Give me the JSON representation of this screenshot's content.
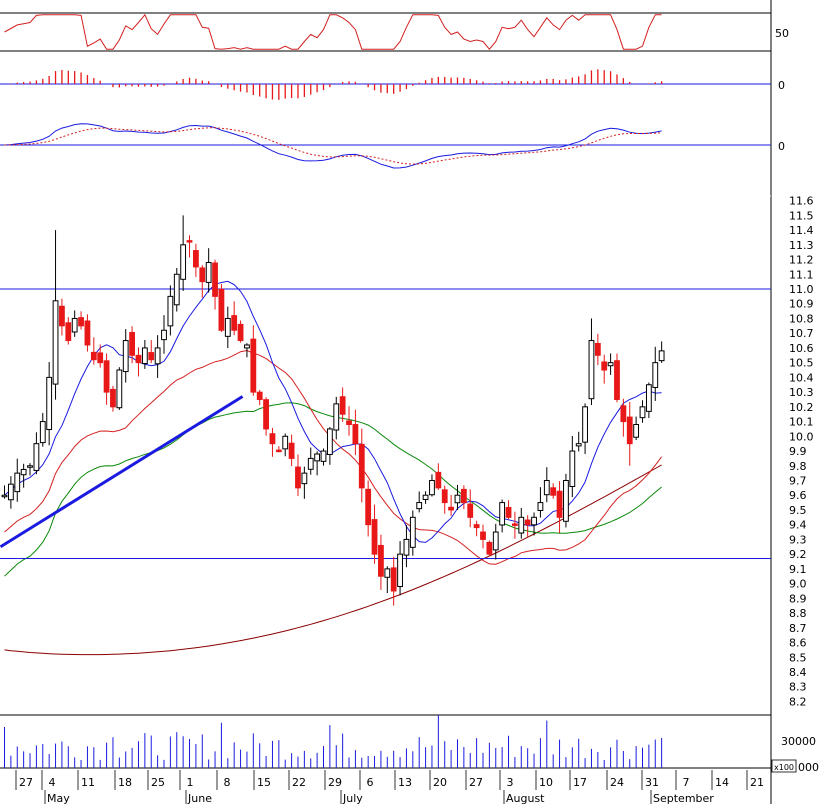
{
  "chart_data": {
    "type": "candlestick",
    "axis": {
      "rsi_ticks": [
        "50"
      ],
      "macd_hist_ticks": [
        "0"
      ],
      "macd_ticks": [
        "0"
      ],
      "price_ticks": [
        "11.6",
        "11.5",
        "11.4",
        "11.3",
        "11.2",
        "11.1",
        "11.0",
        "10.9",
        "10.8",
        "10.7",
        "10.6",
        "10.5",
        "10.4",
        "10.3",
        "10.2",
        "10.1",
        "10.0",
        "9.9",
        "9.8",
        "9.7",
        "9.6",
        "9.5",
        "9.4",
        "9.3",
        "9.2",
        "9.1",
        "9.0",
        "8.9",
        "8.8",
        "8.7",
        "8.6",
        "8.5",
        "8.4",
        "8.3",
        "8.2"
      ],
      "volume_ticks": [
        "30000"
      ],
      "volume_multiplier": "x100",
      "price_range": [
        8.1,
        11.7
      ],
      "days": [
        "27",
        "4",
        "11",
        "18",
        "25",
        "1",
        "8",
        "15",
        "22",
        "29",
        "6",
        "13",
        "20",
        "27",
        "3",
        "10",
        "17",
        "24",
        "31",
        "7",
        "14",
        "21"
      ],
      "months": [
        "May",
        "June",
        "July",
        "August",
        "September"
      ]
    },
    "horizontal_lines": [
      11.0,
      9.17
    ],
    "trendline": {
      "from": [
        0,
        9.25
      ],
      "to": [
        37,
        10.27
      ]
    },
    "colors": {
      "up": "#ffffff",
      "down": "#e81818",
      "rsi": "#d42020",
      "macd": "#1a1ae0",
      "signal": "#d42020",
      "ma_short": "#1a1ae0",
      "ma_mid": "#d42020",
      "ma_green": "#0a8a0a",
      "ma_long": "#8b0000",
      "trend": "#1a1ae0"
    }
  }
}
